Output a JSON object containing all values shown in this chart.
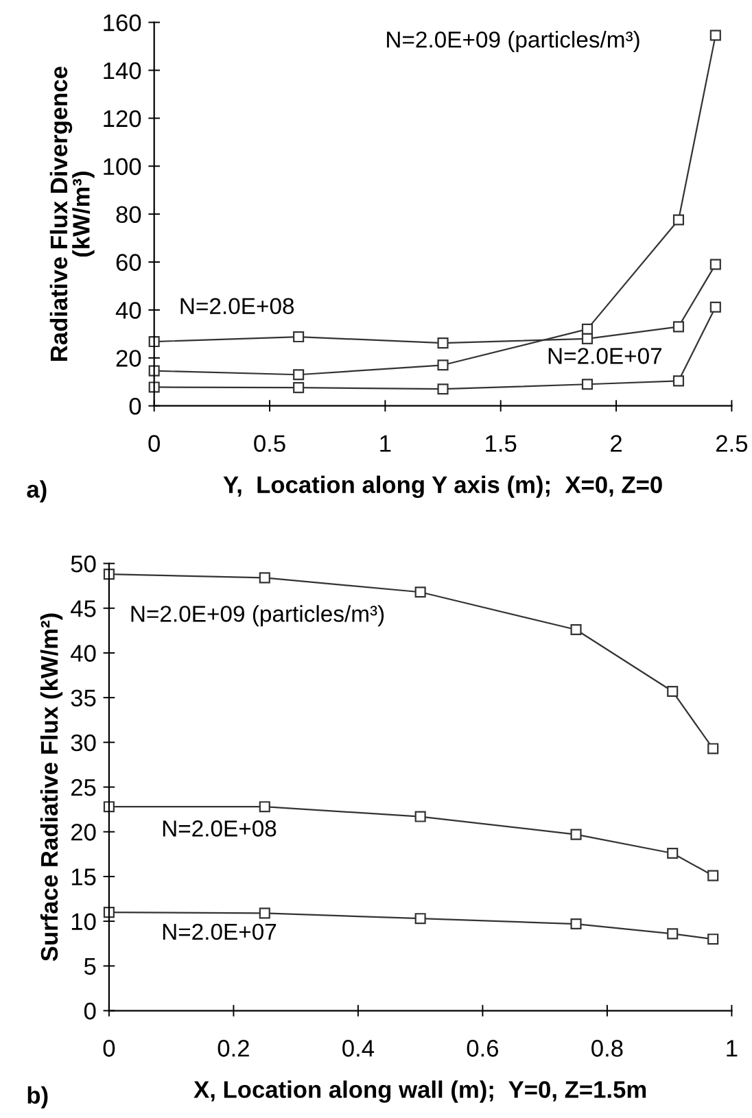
{
  "chart_data": [
    {
      "type": "line",
      "xlabel": "Y,  Location along Y axis (m);  X=0, Z=0",
      "ylabel": "Radiative Flux Divergence\n(kW/m³)",
      "x": [
        0,
        0.625,
        1.25,
        1.875,
        2.27,
        2.43
      ],
      "series": [
        {
          "color": "#333333",
          "values": [
            14.6,
            13,
            17,
            32,
            77.6,
            154.6
          ]
        },
        {
          "color": "#333333",
          "values": [
            26.8,
            28.8,
            26.2,
            28,
            33,
            59
          ]
        },
        {
          "color": "#333333",
          "values": [
            7.8,
            7.6,
            7,
            9,
            10.4,
            41.2
          ]
        }
      ],
      "xlim": [
        0,
        2.5
      ],
      "xticks": [
        0,
        0.5,
        1,
        1.5,
        2,
        2.5
      ],
      "ylim": [
        0,
        160
      ],
      "yticks": [
        0,
        20,
        40,
        60,
        80,
        100,
        120,
        140,
        160
      ],
      "marker": "square",
      "grid": false,
      "legend": false,
      "annotations": [
        "N=2.0E+09 (particles/m³)",
        "N=2.0E+08",
        "N=2.0E+07",
        "a)"
      ]
    },
    {
      "type": "line",
      "xlabel": "X, Location along wall (m);  Y=0, Z=1.5m",
      "ylabel": "Surface Radiative Flux (kW/m²)",
      "x": [
        0,
        0.25,
        0.5,
        0.75,
        0.905,
        0.97
      ],
      "series": [
        {
          "color": "#333333",
          "values": [
            48.8,
            48.4,
            46.8,
            42.6,
            35.7,
            29.3
          ]
        },
        {
          "color": "#333333",
          "values": [
            22.8,
            22.8,
            21.7,
            19.7,
            17.6,
            15.1
          ]
        },
        {
          "color": "#333333",
          "values": [
            11.0,
            10.9,
            10.3,
            9.7,
            8.6,
            8.0
          ]
        }
      ],
      "xlim": [
        0,
        1
      ],
      "xticks": [
        0,
        0.2,
        0.4,
        0.6,
        0.8,
        1
      ],
      "ylim": [
        0,
        50
      ],
      "yticks": [
        0,
        5,
        10,
        15,
        20,
        25,
        30,
        35,
        40,
        45,
        50
      ],
      "marker": "square",
      "grid": false,
      "legend": false,
      "annotations": [
        "N=2.0E+09 (particles/m³)",
        "N=2.0E+08",
        "N=2.0E+07",
        "b)"
      ]
    }
  ]
}
